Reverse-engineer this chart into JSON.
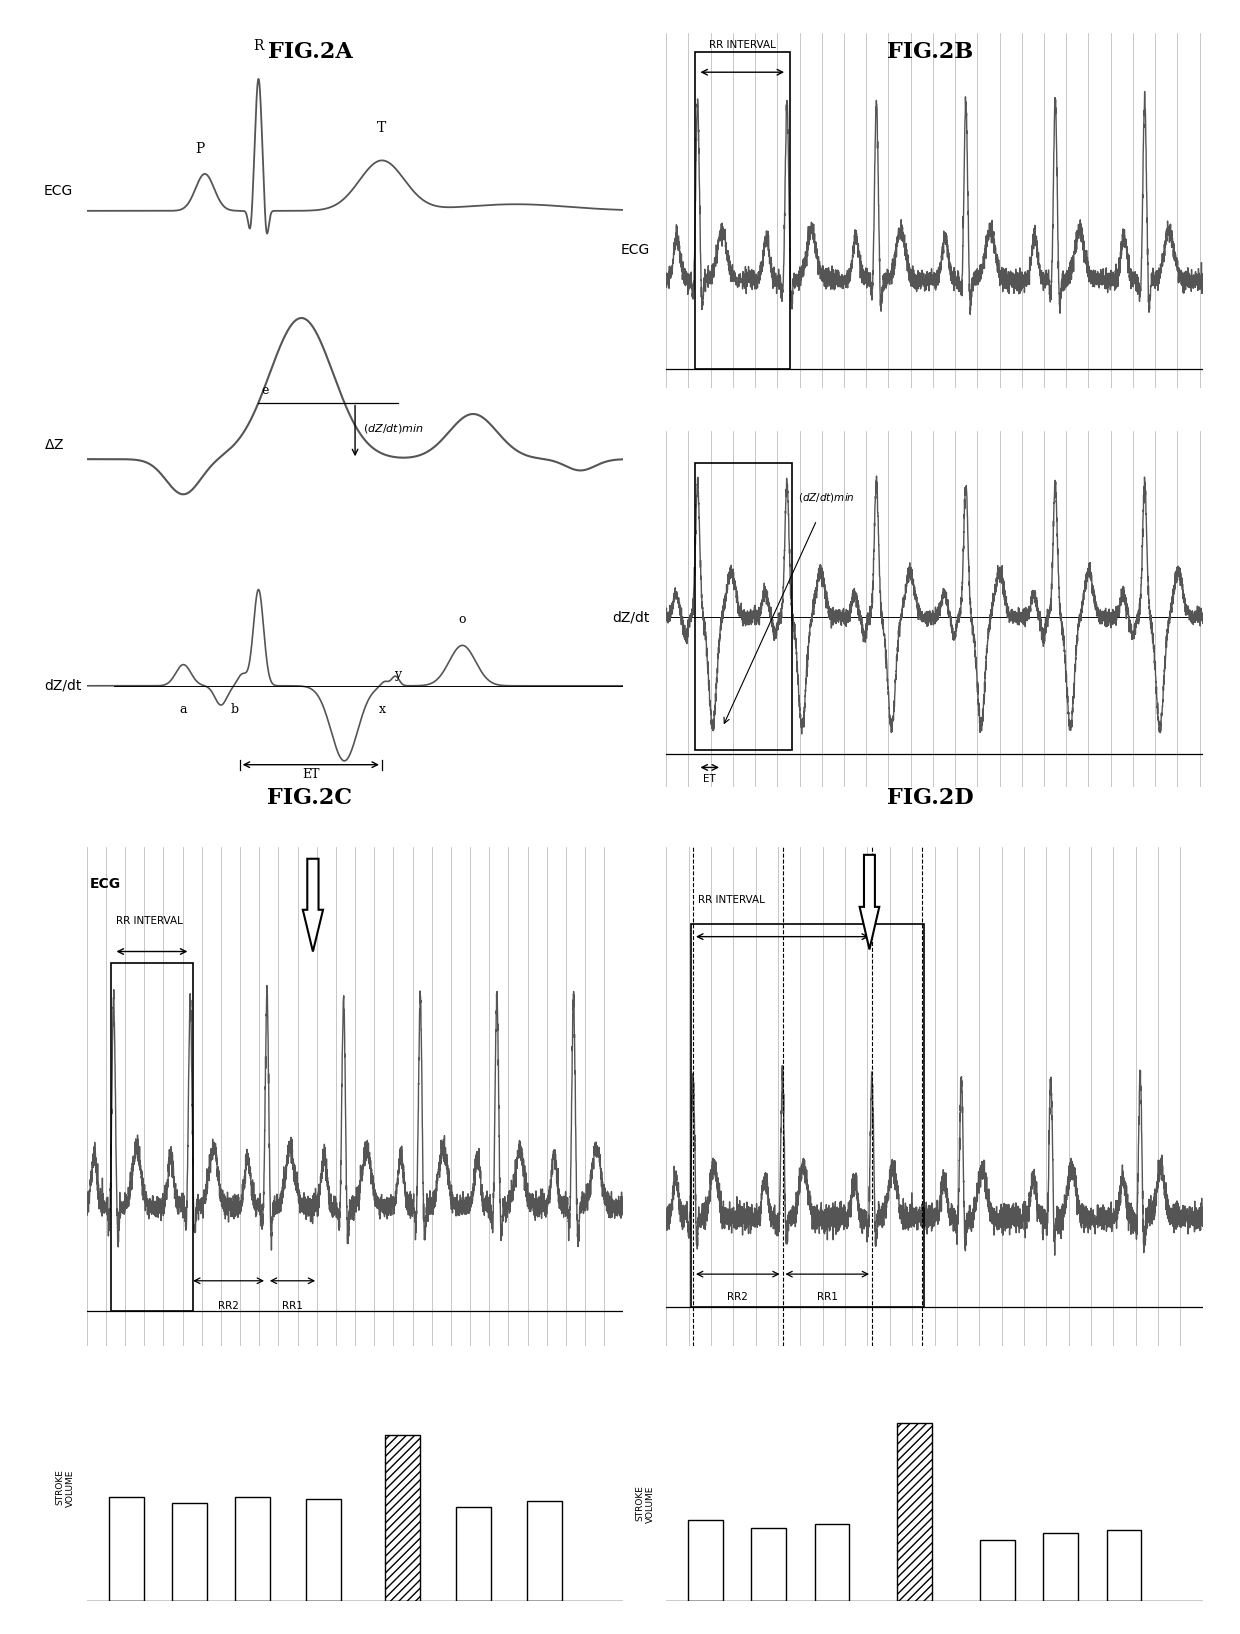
{
  "fig2a_title": "FIG.2A",
  "fig2b_title": "FIG.2B",
  "fig2c_title": "FIG.2C",
  "fig2d_title": "FIG.2D",
  "bg_color": "#ffffff",
  "line_color": "#555555",
  "strip_bg": "#d8d8d8",
  "title_fontsize": 16,
  "label_fontsize": 10,
  "annotation_fontsize": 9
}
